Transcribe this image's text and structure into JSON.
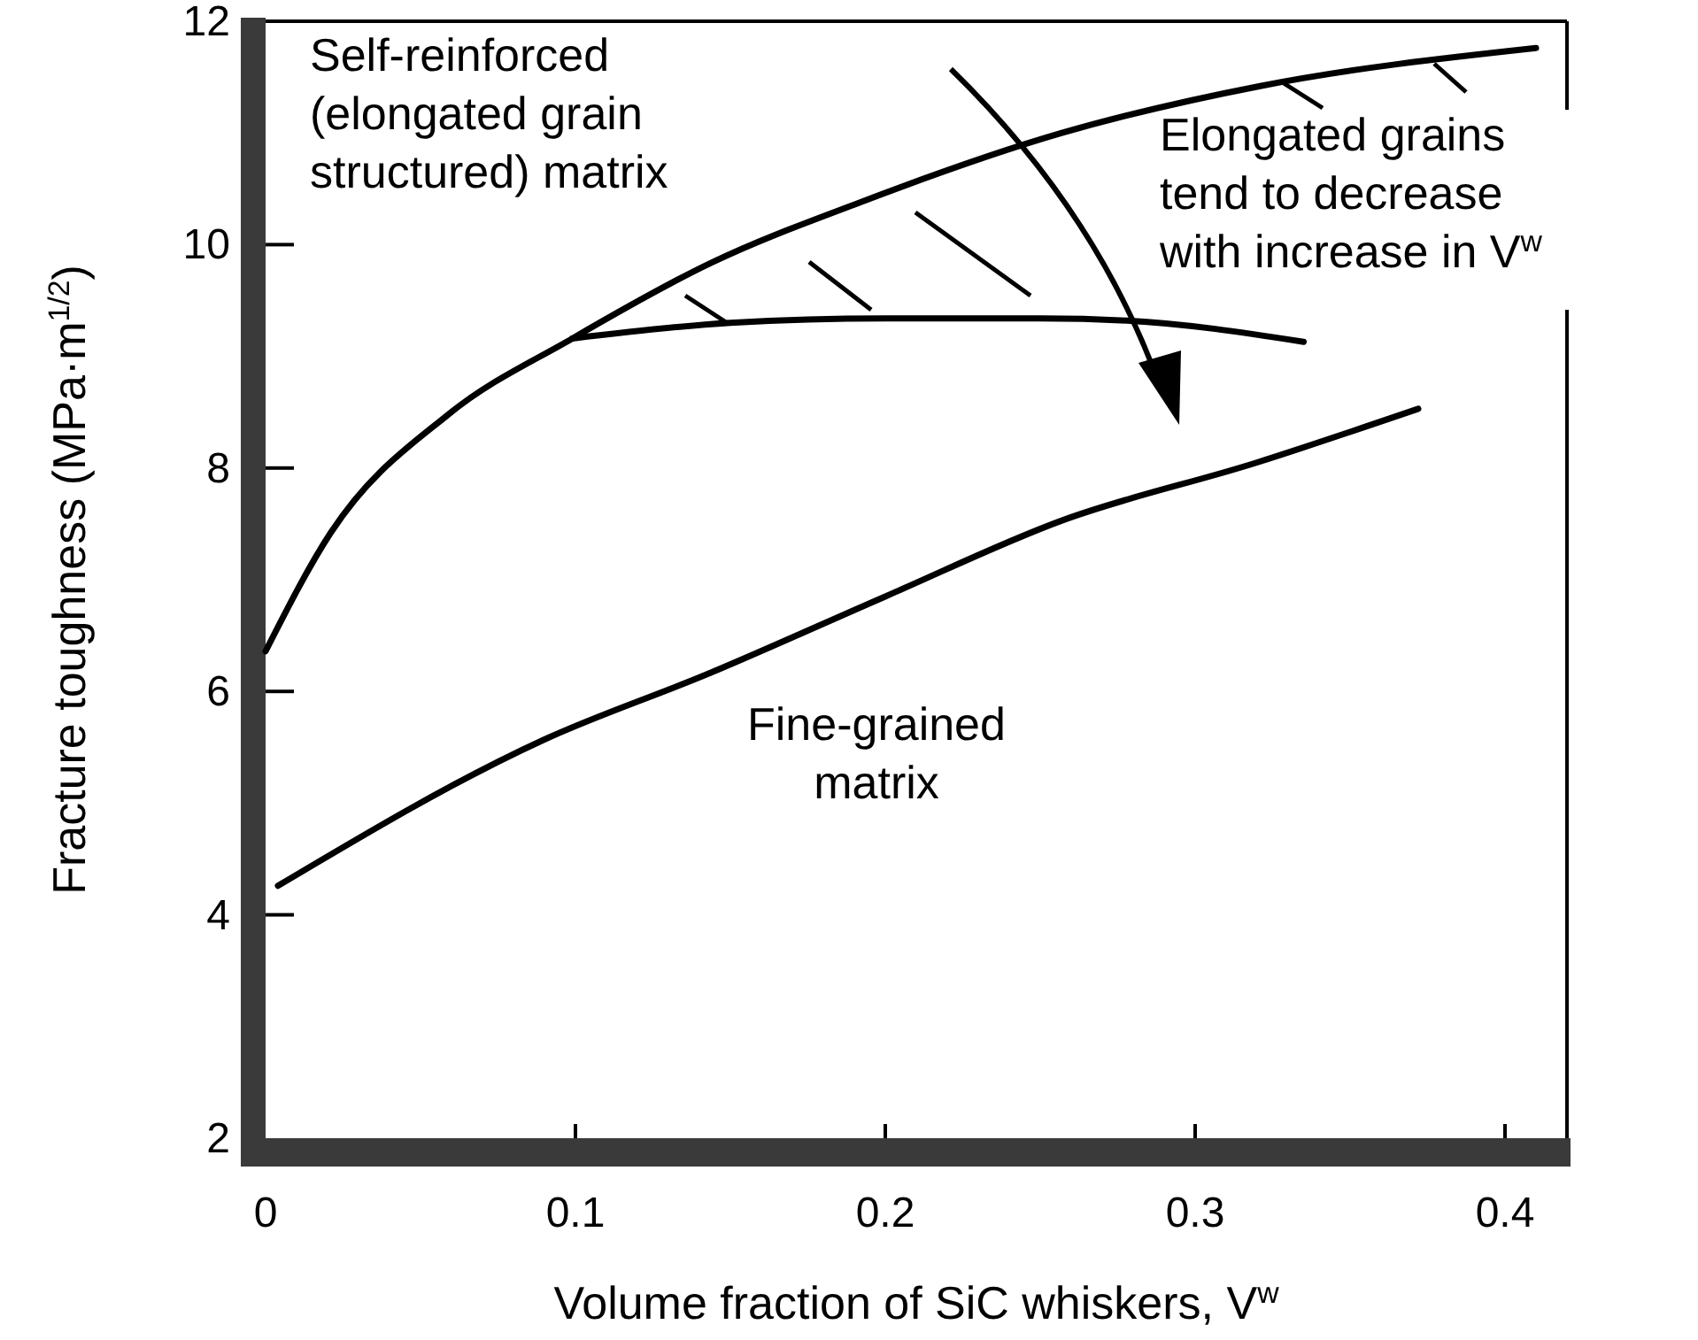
{
  "chart_data": {
    "type": "line",
    "xlabel": "Volume fraction of SiC whiskers, V$^{w}$",
    "ylabel": "Fracture toughness (MPa·m$^{1/2}$)",
    "xlim": [
      0,
      0.42
    ],
    "ylim": [
      2,
      12
    ],
    "xticks": [
      0,
      0.1,
      0.2,
      0.3,
      0.4
    ],
    "yticks": [
      2,
      4,
      6,
      8,
      10,
      12
    ],
    "grid": false,
    "legend": false,
    "marker": "none",
    "line_style": "solid",
    "series": [
      {
        "name": "Self-reinforced\n(elongated grain\nstructured) matrix",
        "color": "#000000",
        "x": [
          0,
          0.021,
          0.059,
          0.099,
          0.144,
          0.192,
          0.257,
          0.321,
          0.41
        ],
        "values": [
          6.36,
          7.42,
          8.48,
          9.16,
          9.84,
          10.38,
          11.0,
          11.42,
          11.76
        ]
      },
      {
        "color": "#000000",
        "x": [
          0.099,
          0.15,
          0.2,
          0.25,
          0.278,
          0.335
        ],
        "values": [
          9.16,
          9.3,
          9.34,
          9.34,
          9.32,
          9.13
        ]
      },
      {
        "name": "Fine-grained\nmatrix",
        "color": "#000000",
        "x": [
          0.004,
          0.09,
          0.143,
          0.2,
          0.257,
          0.32,
          0.372
        ],
        "values": [
          4.26,
          5.57,
          6.16,
          6.85,
          7.53,
          8.05,
          8.53
        ]
      }
    ],
    "annotations": [
      "Elongated grains\ntend to decrease\nwith increase in V$^{w}$"
    ]
  }
}
